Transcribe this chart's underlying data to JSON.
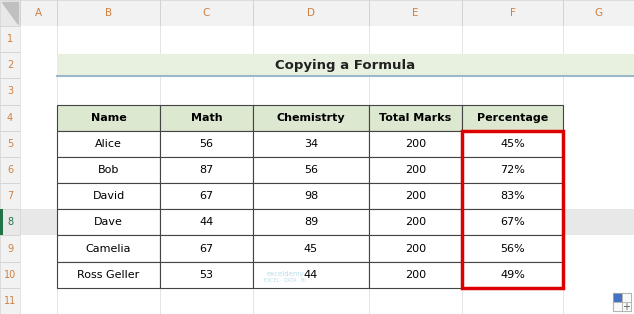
{
  "title": "Copying a Formula",
  "title_bg": "#e8f0e0",
  "title_border": "#9ab8c8",
  "header_bg": "#dce8d0",
  "grid_color": "#444444",
  "red_border_color": "#dd0000",
  "col_letters": [
    "A",
    "B",
    "C",
    "D",
    "E",
    "F",
    "G"
  ],
  "row_numbers": [
    "1",
    "2",
    "3",
    "4",
    "5",
    "6",
    "7",
    "8",
    "9",
    "10",
    "11"
  ],
  "table_headers": [
    "Name",
    "Math",
    "Chemistrty",
    "Total Marks",
    "Percentage"
  ],
  "data_rows": [
    [
      "Alice",
      "56",
      "34",
      "200",
      "45%"
    ],
    [
      "Bob",
      "87",
      "56",
      "200",
      "72%"
    ],
    [
      "David",
      "67",
      "98",
      "200",
      "83%"
    ],
    [
      "Dave",
      "44",
      "89",
      "200",
      "67%"
    ],
    [
      "Camelia",
      "67",
      "45",
      "200",
      "56%"
    ],
    [
      "Ross Geller",
      "53",
      "44",
      "200",
      "49%"
    ]
  ],
  "fig_w": 6.34,
  "fig_h": 3.14,
  "dpi": 100,
  "bg_color": "#ffffff",
  "row_header_bg": "#f2f2f2",
  "col_header_bg": "#f2f2f2",
  "row_header_border": "#d0d0d0",
  "row8_bg": "#e8e8e8",
  "row8_num_color": "#217346",
  "col_letter_color": "#d08040",
  "row_num_color": "#d08040",
  "selected_row_border": "#217346",
  "watermark_color": "#b0d4e8",
  "icon_color": "#aaaaaa"
}
